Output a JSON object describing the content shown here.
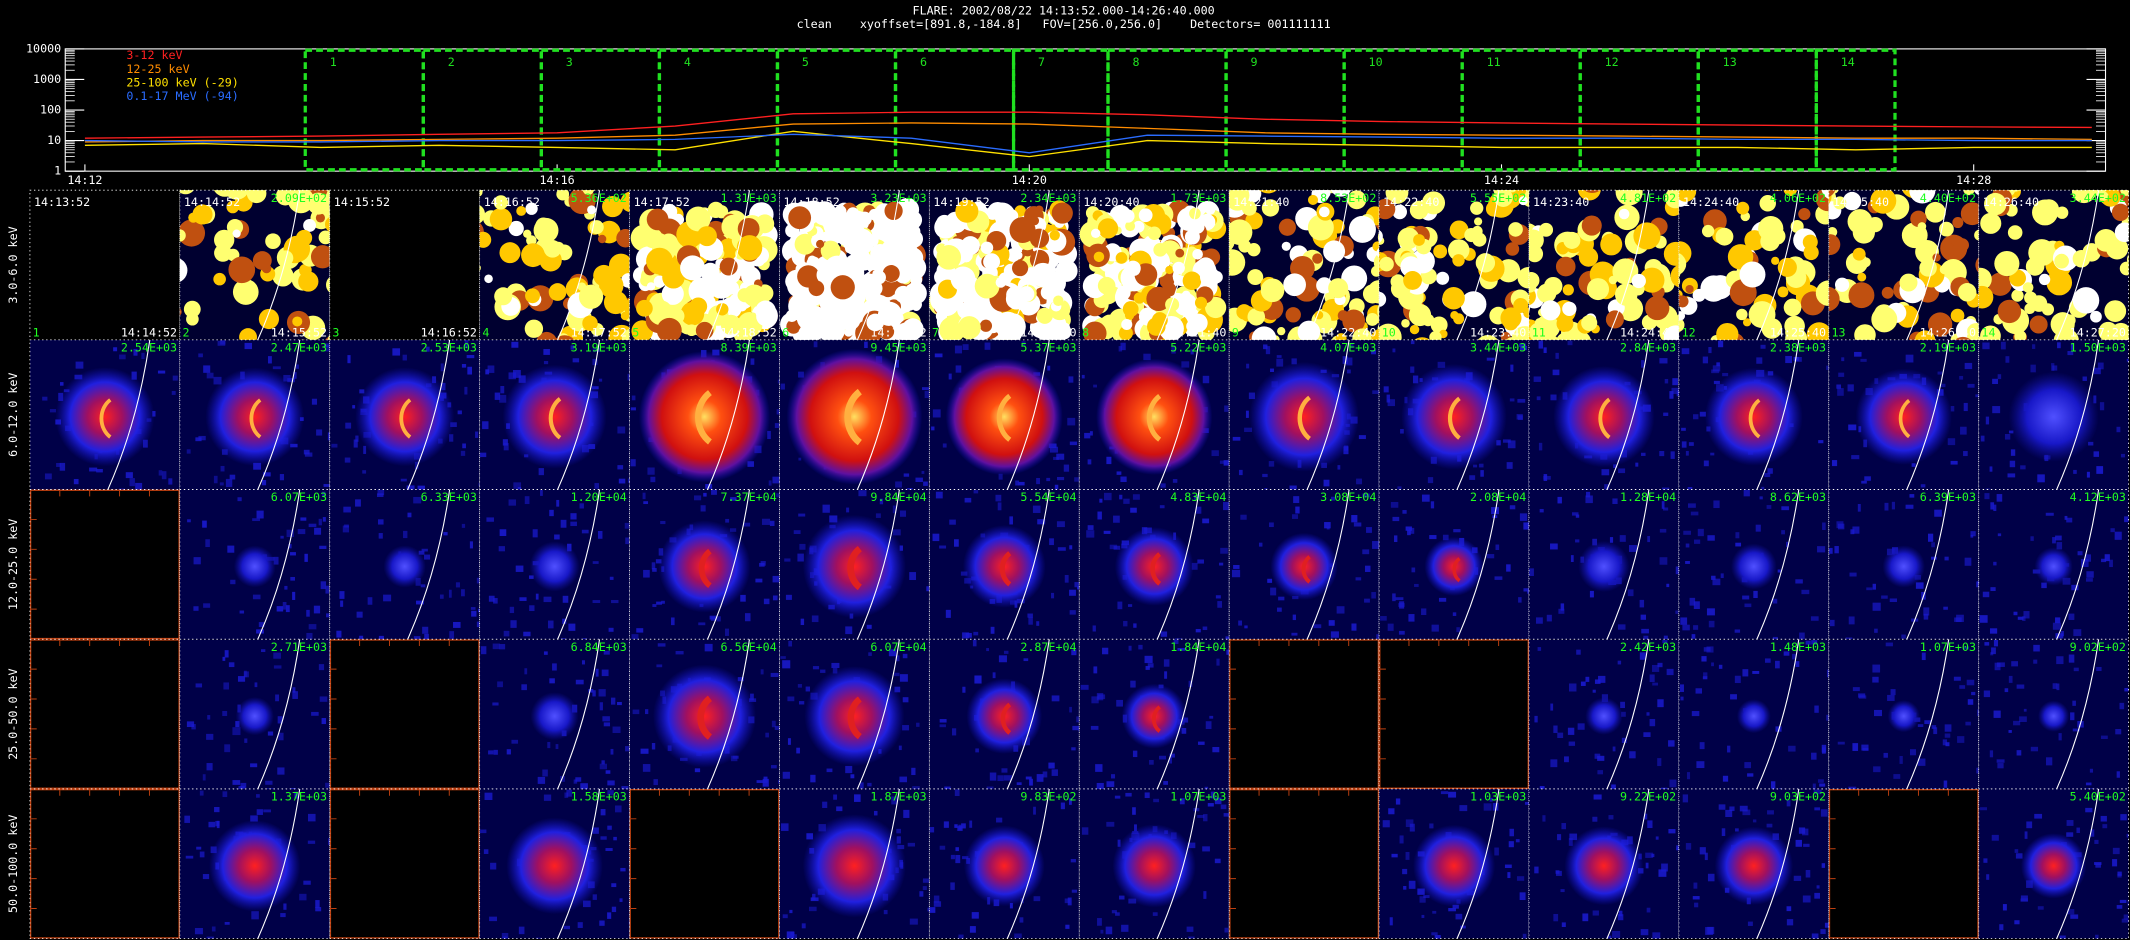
{
  "header": {
    "title": "FLARE: 2002/08/22 14:13:52.000-14:26:40.000",
    "subtitle": "clean    xyoffset=[891.8,-184.8]   FOV=[256.0,256.0]    Detectors= 001111111"
  },
  "chart_data": {
    "type": "line",
    "log_y": true,
    "x": [
      "14:12",
      "14:13",
      "14:14",
      "14:15",
      "14:16",
      "14:17",
      "14:18",
      "14:19",
      "14:20",
      "14:21",
      "14:22",
      "14:23",
      "14:24",
      "14:25",
      "14:26",
      "14:27",
      "14:28",
      "14:29"
    ],
    "series": [
      {
        "name": "3-12 keV",
        "color": "#ff2020",
        "values": [
          12,
          13,
          14,
          16,
          18,
          30,
          75,
          85,
          85,
          70,
          50,
          42,
          38,
          35,
          32,
          30,
          28,
          27
        ]
      },
      {
        "name": "12-25 keV",
        "color": "#ff8c00",
        "values": [
          9,
          10,
          10,
          11,
          12,
          15,
          35,
          38,
          35,
          25,
          18,
          16,
          15,
          14,
          13,
          12,
          12,
          11
        ]
      },
      {
        "name": "25-100 keV (-29)",
        "color": "#ffe000",
        "values": [
          7,
          8,
          6,
          7,
          6,
          5,
          20,
          8,
          3,
          10,
          8,
          7,
          6,
          6,
          6,
          5,
          6,
          6
        ]
      },
      {
        "name": "0.1-17 MeV (-94)",
        "color": "#2a6cff",
        "values": [
          10,
          9,
          9,
          10,
          10,
          11,
          16,
          12,
          4,
          15,
          14,
          13,
          12,
          12,
          11,
          11,
          10,
          10
        ]
      }
    ],
    "xlim": [
      "14:11:50",
      "14:29:07"
    ],
    "xticks": [
      "14:12",
      "14:16",
      "14:20",
      "14:24",
      "14:28"
    ],
    "ylim": [
      1,
      10000
    ],
    "yticks": [
      1,
      10,
      100,
      1000,
      10000
    ]
  },
  "grid": {
    "columns": [
      {
        "index": "1",
        "start": "14:13:52",
        "end": "14:14:52"
      },
      {
        "index": "2",
        "start": "14:14:52",
        "end": "14:15:52"
      },
      {
        "index": "3",
        "start": "14:15:52",
        "end": "14:16:52"
      },
      {
        "index": "4",
        "start": "14:16:52",
        "end": "14:17:52"
      },
      {
        "index": "5",
        "start": "14:17:52",
        "end": "14:18:52"
      },
      {
        "index": "6",
        "start": "14:18:52",
        "end": "14:19:52"
      },
      {
        "index": "7",
        "start": "14:19:52",
        "end": "14:20:40"
      },
      {
        "index": "8",
        "start": "14:20:40",
        "end": "14:21:40"
      },
      {
        "index": "9",
        "start": "14:21:40",
        "end": "14:22:40"
      },
      {
        "index": "10",
        "start": "14:22:40",
        "end": "14:23:40"
      },
      {
        "index": "11",
        "start": "14:23:40",
        "end": "14:24:40"
      },
      {
        "index": "12",
        "start": "14:24:40",
        "end": "14:25:40"
      },
      {
        "index": "13",
        "start": "14:25:40",
        "end": "14:26:40"
      },
      {
        "index": "14",
        "start": "14:26:40",
        "end": "14:27:20"
      }
    ],
    "rows": [
      {
        "label": "3.0-6.0 keV",
        "values": [
          null,
          209,
          null,
          536,
          1310,
          3230,
          2340,
          1730,
          853,
          555,
          481,
          406,
          440,
          344
        ],
        "value_labels": [
          null,
          "2.09E+02",
          null,
          "5.36E+02",
          "1.31E+03",
          "3.23E+03",
          "2.34E+03",
          "1.73E+03",
          "8.53E+02",
          "5.55E+02",
          "4.81E+02",
          "4.06E+02",
          "4.40E+02",
          "3.44E+02"
        ]
      },
      {
        "label": "6.0-12.0 keV",
        "values": [
          2540,
          2470,
          2530,
          3190,
          8390,
          9450,
          5370,
          5220,
          4070,
          3440,
          2840,
          2380,
          2190,
          1500
        ],
        "value_labels": [
          "2.54E+03",
          "2.47E+03",
          "2.53E+03",
          "3.19E+03",
          "8.39E+03",
          "9.45E+03",
          "5.37E+03",
          "5.22E+03",
          "4.07E+03",
          "3.44E+03",
          "2.84E+03",
          "2.38E+03",
          "2.19E+03",
          "1.50E+03"
        ]
      },
      {
        "label": "12.0-25.0 keV",
        "values": [
          null,
          6070,
          6330,
          12000,
          73700,
          98400,
          55400,
          48300,
          30800,
          20800,
          12800,
          8620,
          6390,
          4120
        ],
        "value_labels": [
          null,
          "6.07E+03",
          "6.33E+03",
          "1.20E+04",
          "7.37E+04",
          "9.84E+04",
          "5.54E+04",
          "4.83E+04",
          "3.08E+04",
          "2.08E+04",
          "1.28E+04",
          "8.62E+03",
          "6.39E+03",
          "4.12E+03"
        ]
      },
      {
        "label": "25.0-50.0 keV",
        "values": [
          null,
          2710,
          null,
          6840,
          65600,
          60700,
          28700,
          18400,
          null,
          null,
          2420,
          1480,
          1070,
          902
        ],
        "value_labels": [
          null,
          "2.71E+03",
          null,
          "6.84E+03",
          "6.56E+04",
          "6.07E+04",
          "2.87E+04",
          "1.84E+04",
          null,
          null,
          "2.42E+03",
          "1.48E+03",
          "1.07E+03",
          "9.02E+02"
        ]
      },
      {
        "label": "50.0-100.0 keV",
        "values": [
          null,
          1370,
          null,
          1580,
          null,
          1870,
          983,
          1070,
          null,
          1030,
          922,
          903,
          null,
          540
        ],
        "value_labels": [
          null,
          "1.37E+03",
          null,
          "1.58E+03",
          null,
          "1.87E+03",
          "9.83E+02",
          "1.07E+03",
          null,
          "1.03E+03",
          "9.22E+02",
          "9.03E+02",
          null,
          "5.40E+02"
        ]
      }
    ]
  }
}
